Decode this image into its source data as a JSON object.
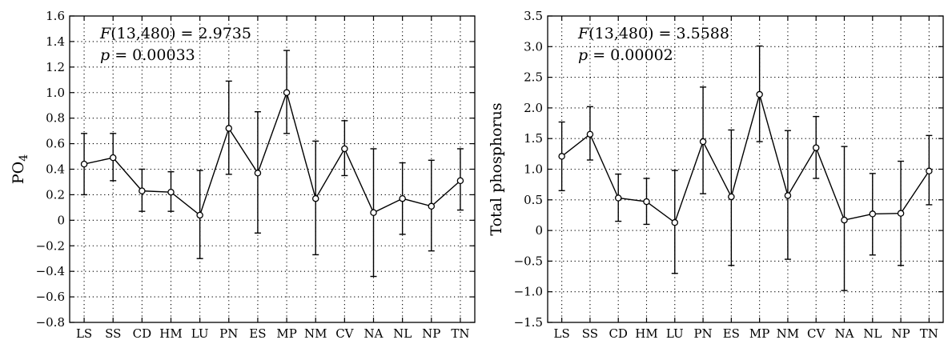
{
  "chart_data": [
    {
      "type": "line",
      "title": "",
      "xlabel": "",
      "ylabel": "PO",
      "ylabel_subscript": "4",
      "ylim": [
        -0.8,
        1.6
      ],
      "yticks": [
        -0.8,
        -0.6,
        -0.4,
        -0.2,
        0,
        0.2,
        0.4,
        0.6,
        0.8,
        1.0,
        1.2,
        1.4,
        1.6
      ],
      "ytick_labels": [
        "−0.8",
        "−0.6",
        "−0.4",
        "−0.2",
        "0",
        "0.2",
        "0.4",
        "0.6",
        "0.8",
        "1.0",
        "1.2",
        "1.4",
        "1.6"
      ],
      "grid": true,
      "categories": [
        "LS",
        "SS",
        "CD",
        "HM",
        "LU",
        "PN",
        "ES",
        "MP",
        "NM",
        "CV",
        "NA",
        "NL",
        "NP",
        "TN"
      ],
      "series": [
        {
          "values": [
            0.44,
            0.49,
            0.23,
            0.22,
            0.04,
            0.72,
            0.37,
            1.0,
            0.17,
            0.56,
            0.06,
            0.17,
            0.11,
            0.31
          ],
          "err_low": [
            0.2,
            0.31,
            0.07,
            0.07,
            -0.3,
            0.36,
            -0.1,
            0.68,
            -0.27,
            0.35,
            -0.44,
            -0.11,
            -0.24,
            0.08
          ],
          "err_high": [
            0.68,
            0.68,
            0.4,
            0.38,
            0.39,
            1.09,
            0.85,
            1.33,
            0.62,
            0.78,
            0.56,
            0.45,
            0.47,
            0.56
          ]
        }
      ],
      "annotations": [
        {
          "lead": "F",
          "text": "(13,480) = 2.9735"
        },
        {
          "lead": "p",
          "text": " = 0.00033"
        }
      ]
    },
    {
      "type": "line",
      "title": "",
      "xlabel": "",
      "ylabel": "Total phosphorus",
      "ylim": [
        -1.5,
        3.5
      ],
      "yticks": [
        -1.5,
        -1.0,
        -0.5,
        0,
        0.5,
        1.0,
        1.5,
        2.0,
        2.5,
        3.0,
        3.5
      ],
      "ytick_labels": [
        "−1.5",
        "−1.0",
        "−0.5",
        "0",
        "0.5",
        "1.0",
        "1.5",
        "2.0",
        "2.5",
        "3.0",
        "3.5"
      ],
      "grid": true,
      "categories": [
        "LS",
        "SS",
        "CD",
        "HM",
        "LU",
        "PN",
        "ES",
        "MP",
        "NM",
        "CV",
        "NA",
        "NL",
        "NP",
        "TN"
      ],
      "series": [
        {
          "values": [
            1.21,
            1.57,
            0.53,
            0.47,
            0.13,
            1.45,
            0.55,
            2.22,
            0.57,
            1.35,
            0.17,
            0.27,
            0.28,
            0.97
          ],
          "err_low": [
            0.65,
            1.15,
            0.15,
            0.1,
            -0.7,
            0.6,
            -0.57,
            1.45,
            -0.47,
            0.85,
            -0.98,
            -0.4,
            -0.57,
            0.42
          ],
          "err_high": [
            1.77,
            2.02,
            0.92,
            0.85,
            0.98,
            2.34,
            1.64,
            3.01,
            1.63,
            1.86,
            1.37,
            0.93,
            1.13,
            1.55
          ]
        }
      ],
      "annotations": [
        {
          "lead": "F",
          "text": "(13,480) = 3.5588"
        },
        {
          "lead": "p",
          "text": " = 0.00002"
        }
      ]
    }
  ]
}
